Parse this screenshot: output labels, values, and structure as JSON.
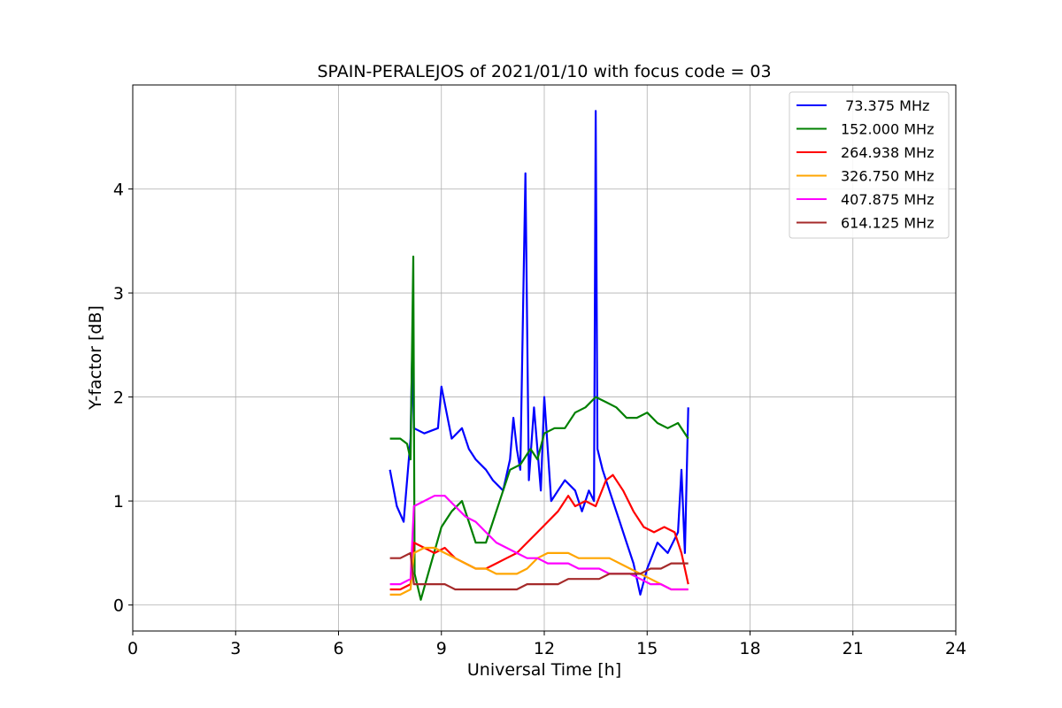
{
  "chart_data": {
    "type": "line",
    "title": "SPAIN-PERALEJOS of 2021/01/10 with focus code = 03",
    "xlabel": "Universal Time [h]",
    "ylabel": "Y-factor [dB]",
    "xlim": [
      0,
      24
    ],
    "ylim": [
      -0.25,
      5.0
    ],
    "xticks": [
      0,
      3,
      6,
      9,
      12,
      15,
      18,
      21,
      24
    ],
    "yticks": [
      0,
      1,
      2,
      3,
      4
    ],
    "grid": true,
    "legend_position": "top-right",
    "series": [
      {
        "name": " 73.375 MHz",
        "color": "#0000ff",
        "points": [
          [
            7.5,
            1.3
          ],
          [
            7.7,
            0.95
          ],
          [
            7.9,
            0.8
          ],
          [
            8.1,
            1.6
          ],
          [
            8.15,
            2.45
          ],
          [
            8.2,
            1.7
          ],
          [
            8.5,
            1.65
          ],
          [
            8.9,
            1.7
          ],
          [
            9.0,
            2.1
          ],
          [
            9.3,
            1.6
          ],
          [
            9.6,
            1.7
          ],
          [
            9.8,
            1.5
          ],
          [
            10.0,
            1.4
          ],
          [
            10.3,
            1.3
          ],
          [
            10.5,
            1.2
          ],
          [
            10.8,
            1.1
          ],
          [
            11.0,
            1.4
          ],
          [
            11.1,
            1.8
          ],
          [
            11.2,
            1.5
          ],
          [
            11.3,
            1.3
          ],
          [
            11.45,
            4.15
          ],
          [
            11.55,
            1.2
          ],
          [
            11.7,
            1.9
          ],
          [
            11.9,
            1.1
          ],
          [
            12.0,
            2.0
          ],
          [
            12.2,
            1.0
          ],
          [
            12.4,
            1.1
          ],
          [
            12.6,
            1.2
          ],
          [
            12.9,
            1.1
          ],
          [
            13.1,
            0.9
          ],
          [
            13.3,
            1.1
          ],
          [
            13.45,
            1.0
          ],
          [
            13.5,
            4.75
          ],
          [
            13.55,
            1.5
          ],
          [
            13.7,
            1.3
          ],
          [
            14.0,
            1.0
          ],
          [
            14.2,
            0.8
          ],
          [
            14.4,
            0.6
          ],
          [
            14.6,
            0.4
          ],
          [
            14.8,
            0.1
          ],
          [
            15.0,
            0.35
          ],
          [
            15.3,
            0.6
          ],
          [
            15.6,
            0.5
          ],
          [
            15.9,
            0.7
          ],
          [
            16.0,
            1.3
          ],
          [
            16.1,
            0.5
          ],
          [
            16.2,
            1.9
          ]
        ]
      },
      {
        "name": "152.000 MHz",
        "color": "#008000",
        "points": [
          [
            7.5,
            1.6
          ],
          [
            7.8,
            1.6
          ],
          [
            8.0,
            1.55
          ],
          [
            8.1,
            1.4
          ],
          [
            8.18,
            3.35
          ],
          [
            8.22,
            0.3
          ],
          [
            8.4,
            0.05
          ],
          [
            8.7,
            0.4
          ],
          [
            9.0,
            0.75
          ],
          [
            9.3,
            0.9
          ],
          [
            9.6,
            1.0
          ],
          [
            10.0,
            0.6
          ],
          [
            10.3,
            0.6
          ],
          [
            10.5,
            0.8
          ],
          [
            10.8,
            1.1
          ],
          [
            11.0,
            1.3
          ],
          [
            11.3,
            1.35
          ],
          [
            11.6,
            1.5
          ],
          [
            11.8,
            1.4
          ],
          [
            12.0,
            1.65
          ],
          [
            12.3,
            1.7
          ],
          [
            12.6,
            1.7
          ],
          [
            12.9,
            1.85
          ],
          [
            13.2,
            1.9
          ],
          [
            13.5,
            2.0
          ],
          [
            13.8,
            1.95
          ],
          [
            14.1,
            1.9
          ],
          [
            14.4,
            1.8
          ],
          [
            14.7,
            1.8
          ],
          [
            15.0,
            1.85
          ],
          [
            15.3,
            1.75
          ],
          [
            15.6,
            1.7
          ],
          [
            15.9,
            1.75
          ],
          [
            16.2,
            1.6
          ]
        ]
      },
      {
        "name": "264.938 MHz",
        "color": "#ff0000",
        "points": [
          [
            7.5,
            0.15
          ],
          [
            7.8,
            0.15
          ],
          [
            8.1,
            0.2
          ],
          [
            8.2,
            0.6
          ],
          [
            8.5,
            0.55
          ],
          [
            8.8,
            0.5
          ],
          [
            9.1,
            0.55
          ],
          [
            9.4,
            0.45
          ],
          [
            9.7,
            0.4
          ],
          [
            10.0,
            0.35
          ],
          [
            10.3,
            0.35
          ],
          [
            10.6,
            0.4
          ],
          [
            10.9,
            0.45
          ],
          [
            11.2,
            0.5
          ],
          [
            11.5,
            0.6
          ],
          [
            11.8,
            0.7
          ],
          [
            12.1,
            0.8
          ],
          [
            12.4,
            0.9
          ],
          [
            12.7,
            1.05
          ],
          [
            12.9,
            0.95
          ],
          [
            13.2,
            1.0
          ],
          [
            13.5,
            0.95
          ],
          [
            13.8,
            1.2
          ],
          [
            14.0,
            1.25
          ],
          [
            14.3,
            1.1
          ],
          [
            14.6,
            0.9
          ],
          [
            14.9,
            0.75
          ],
          [
            15.2,
            0.7
          ],
          [
            15.5,
            0.75
          ],
          [
            15.8,
            0.7
          ],
          [
            16.0,
            0.5
          ],
          [
            16.2,
            0.2
          ]
        ]
      },
      {
        "name": "326.750 MHz",
        "color": "#ffa500",
        "points": [
          [
            7.5,
            0.1
          ],
          [
            7.8,
            0.1
          ],
          [
            8.1,
            0.15
          ],
          [
            8.2,
            0.5
          ],
          [
            8.5,
            0.55
          ],
          [
            8.8,
            0.55
          ],
          [
            9.1,
            0.5
          ],
          [
            9.4,
            0.45
          ],
          [
            9.7,
            0.4
          ],
          [
            10.0,
            0.35
          ],
          [
            10.3,
            0.35
          ],
          [
            10.6,
            0.3
          ],
          [
            10.9,
            0.3
          ],
          [
            11.2,
            0.3
          ],
          [
            11.5,
            0.35
          ],
          [
            11.8,
            0.45
          ],
          [
            12.1,
            0.5
          ],
          [
            12.4,
            0.5
          ],
          [
            12.7,
            0.5
          ],
          [
            13.0,
            0.45
          ],
          [
            13.3,
            0.45
          ],
          [
            13.6,
            0.45
          ],
          [
            13.9,
            0.45
          ],
          [
            14.2,
            0.4
          ],
          [
            14.5,
            0.35
          ],
          [
            14.8,
            0.3
          ],
          [
            15.1,
            0.25
          ],
          [
            15.4,
            0.2
          ],
          [
            15.7,
            0.15
          ],
          [
            16.0,
            0.15
          ],
          [
            16.2,
            0.15
          ]
        ]
      },
      {
        "name": "407.875 MHz",
        "color": "#ff00ff",
        "points": [
          [
            7.5,
            0.2
          ],
          [
            7.8,
            0.2
          ],
          [
            8.1,
            0.25
          ],
          [
            8.2,
            0.95
          ],
          [
            8.5,
            1.0
          ],
          [
            8.8,
            1.05
          ],
          [
            9.1,
            1.05
          ],
          [
            9.4,
            0.95
          ],
          [
            9.7,
            0.85
          ],
          [
            10.0,
            0.8
          ],
          [
            10.3,
            0.7
          ],
          [
            10.6,
            0.6
          ],
          [
            10.9,
            0.55
          ],
          [
            11.2,
            0.5
          ],
          [
            11.5,
            0.45
          ],
          [
            11.8,
            0.45
          ],
          [
            12.1,
            0.4
          ],
          [
            12.4,
            0.4
          ],
          [
            12.7,
            0.4
          ],
          [
            13.0,
            0.35
          ],
          [
            13.3,
            0.35
          ],
          [
            13.6,
            0.35
          ],
          [
            13.9,
            0.3
          ],
          [
            14.2,
            0.3
          ],
          [
            14.5,
            0.3
          ],
          [
            14.8,
            0.25
          ],
          [
            15.1,
            0.2
          ],
          [
            15.4,
            0.2
          ],
          [
            15.7,
            0.15
          ],
          [
            16.0,
            0.15
          ],
          [
            16.2,
            0.15
          ]
        ]
      },
      {
        "name": "614.125 MHz",
        "color": "#a52a2a",
        "points": [
          [
            7.5,
            0.45
          ],
          [
            7.8,
            0.45
          ],
          [
            8.1,
            0.5
          ],
          [
            8.2,
            0.2
          ],
          [
            8.5,
            0.2
          ],
          [
            8.8,
            0.2
          ],
          [
            9.1,
            0.2
          ],
          [
            9.4,
            0.15
          ],
          [
            9.7,
            0.15
          ],
          [
            10.0,
            0.15
          ],
          [
            10.3,
            0.15
          ],
          [
            10.6,
            0.15
          ],
          [
            10.9,
            0.15
          ],
          [
            11.2,
            0.15
          ],
          [
            11.5,
            0.2
          ],
          [
            11.8,
            0.2
          ],
          [
            12.1,
            0.2
          ],
          [
            12.4,
            0.2
          ],
          [
            12.7,
            0.25
          ],
          [
            13.0,
            0.25
          ],
          [
            13.3,
            0.25
          ],
          [
            13.6,
            0.25
          ],
          [
            13.9,
            0.3
          ],
          [
            14.2,
            0.3
          ],
          [
            14.5,
            0.3
          ],
          [
            14.8,
            0.3
          ],
          [
            15.1,
            0.35
          ],
          [
            15.4,
            0.35
          ],
          [
            15.7,
            0.4
          ],
          [
            16.0,
            0.4
          ],
          [
            16.2,
            0.4
          ]
        ]
      }
    ]
  }
}
